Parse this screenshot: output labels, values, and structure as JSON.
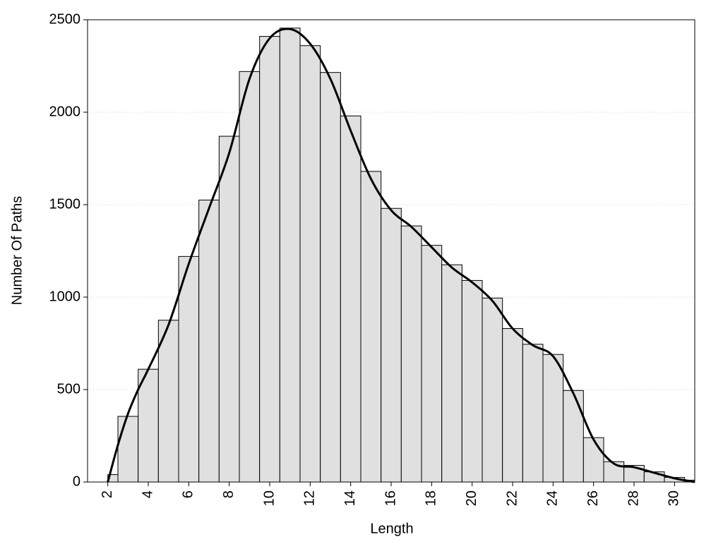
{
  "chart_data": {
    "type": "histogram",
    "x_label": "Length",
    "y_label": "Number Of Paths",
    "bins": [
      2,
      2.5,
      3.5,
      4.5,
      5.5,
      6.5,
      7.5,
      8.5,
      9.5,
      10.5,
      11.5,
      12.5,
      13.5,
      14.5,
      15.5,
      16.5,
      17.5,
      18.5,
      19.5,
      20.5,
      21.5,
      22.5,
      23.5,
      24.5,
      25.5,
      26.5,
      27.5,
      28.5,
      29.5,
      30.5,
      31
    ],
    "values": [
      40,
      355,
      610,
      875,
      1220,
      1525,
      1870,
      2220,
      2410,
      2455,
      2360,
      2215,
      1980,
      1680,
      1480,
      1385,
      1280,
      1175,
      1090,
      995,
      830,
      745,
      690,
      495,
      240,
      110,
      90,
      55,
      25,
      10
    ],
    "color": "#e0e0e0",
    "line": {
      "x": [
        2,
        2.5,
        3,
        3.5,
        4,
        5,
        6,
        7,
        8,
        9,
        10,
        11,
        12,
        13,
        14,
        15,
        16,
        17,
        18,
        19,
        20,
        21,
        22,
        23,
        24,
        25,
        26,
        27,
        28,
        29,
        30,
        31
      ],
      "values": [
        0,
        200,
        370,
        500,
        610,
        850,
        1180,
        1480,
        1780,
        2180,
        2400,
        2450,
        2370,
        2180,
        1900,
        1640,
        1470,
        1380,
        1270,
        1160,
        1080,
        980,
        830,
        740,
        680,
        480,
        230,
        100,
        80,
        50,
        20,
        0
      ],
      "color": "#000000"
    },
    "xlim": [
      1,
      31
    ],
    "ylim": [
      0,
      2500
    ],
    "xticks": [
      2,
      4,
      6,
      8,
      10,
      12,
      14,
      16,
      18,
      20,
      22,
      24,
      26,
      28,
      30
    ],
    "yticks": [
      0,
      500,
      1000,
      1500,
      2000,
      2500
    ],
    "grid": true
  }
}
